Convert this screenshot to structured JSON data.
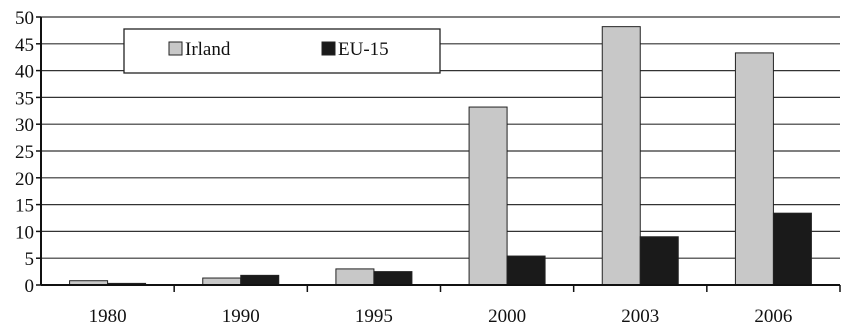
{
  "chart_data": {
    "type": "bar",
    "categories": [
      "1980",
      "1990",
      "1995",
      "2000",
      "2003",
      "2006"
    ],
    "series": [
      {
        "name": "Irland",
        "values": [
          0.8,
          1.3,
          3.0,
          33.2,
          48.2,
          43.3
        ],
        "color": "#c8c8c8"
      },
      {
        "name": "EU-15",
        "values": [
          0.3,
          1.8,
          2.5,
          5.4,
          9.0,
          13.4
        ],
        "color": "#1a1a1a"
      }
    ],
    "title": "",
    "xlabel": "",
    "ylabel": "",
    "ylim": [
      0,
      50
    ],
    "yticks": [
      "0",
      "5",
      "10",
      "15",
      "20",
      "25",
      "30",
      "35",
      "40",
      "45",
      "50"
    ],
    "grid": true,
    "legend_position": "top-left"
  },
  "legend": {
    "irland_label": "Irland",
    "eu15_label": "EU-15"
  }
}
